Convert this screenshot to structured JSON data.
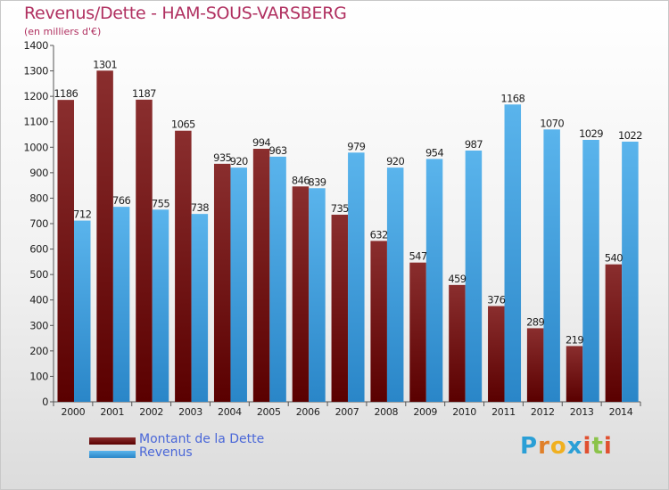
{
  "title": "Revenus/Dette - HAM-SOUS-VARSBERG",
  "subtitle": "(en milliers d'€)",
  "logo": {
    "letters": [
      "P",
      "r",
      "o",
      "x",
      "i",
      "t",
      "i"
    ],
    "colors": [
      "#2a9fd6",
      "#e0802a",
      "#f0b020",
      "#2a9fd6",
      "#e05030",
      "#8bc34a",
      "#e05030"
    ]
  },
  "colors": {
    "dette_top": "#8a2e2e",
    "dette_bottom": "#5a0000",
    "revenus_top": "#5ab4ec",
    "revenus_bottom": "#2a86c8",
    "title": "#b03060"
  },
  "legend": {
    "dette_label": "Montant de la Dette",
    "revenus_label": "Revenus"
  },
  "chart_data": {
    "type": "bar",
    "title": "Revenus/Dette - HAM-SOUS-VARSBERG",
    "subtitle": "(en milliers d'€)",
    "xlabel": "",
    "ylabel": "",
    "ylim": [
      0,
      1400
    ],
    "yticks": [
      0,
      100,
      200,
      300,
      400,
      500,
      600,
      700,
      800,
      900,
      1000,
      1100,
      1200,
      1300,
      1400
    ],
    "grid": false,
    "legend_position": "bottom-left",
    "categories": [
      "2000",
      "2001",
      "2002",
      "2003",
      "2004",
      "2005",
      "2006",
      "2007",
      "2008",
      "2009",
      "2010",
      "2011",
      "2012",
      "2013",
      "2014"
    ],
    "series": [
      {
        "name": "Montant de la Dette",
        "values": [
          1186,
          1301,
          1187,
          1065,
          935,
          994,
          846,
          735,
          632,
          547,
          459,
          376,
          289,
          219,
          540
        ]
      },
      {
        "name": "Revenus",
        "values": [
          712,
          766,
          755,
          738,
          920,
          963,
          839,
          979,
          920,
          954,
          987,
          1168,
          1070,
          1029,
          1022
        ]
      }
    ]
  }
}
